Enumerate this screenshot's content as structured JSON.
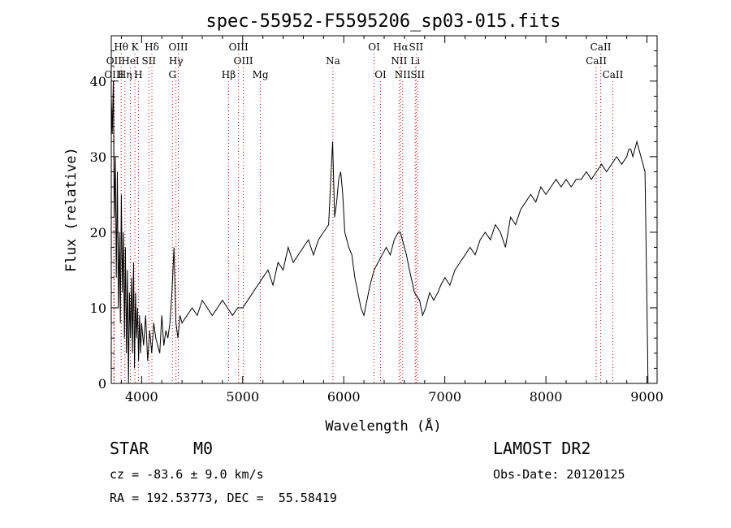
{
  "chart_data": {
    "type": "line",
    "title": "spec-55952-F5595206_sp03-015.fits",
    "xlabel": "Wavelength (Å)",
    "ylabel": "Flux (relative)",
    "xlim": [
      3700,
      9100
    ],
    "ylim": [
      0,
      46
    ],
    "xticks": [
      4000,
      5000,
      6000,
      7000,
      8000,
      9000
    ],
    "yticks": [
      0,
      10,
      20,
      30,
      40
    ],
    "grid": false,
    "line_color": "#000000",
    "marker_color": "#cc0000",
    "series": [
      {
        "x": [
          3700,
          3710,
          3720,
          3730,
          3740,
          3750,
          3760,
          3770,
          3780,
          3790,
          3800,
          3810,
          3820,
          3830,
          3840,
          3850,
          3860,
          3870,
          3880,
          3890,
          3900,
          3910,
          3920,
          3930,
          3940,
          3950,
          3960,
          3970,
          3980,
          3990,
          4000,
          4020,
          4040,
          4060,
          4080,
          4100,
          4120,
          4140,
          4160,
          4180,
          4200,
          4220,
          4240,
          4260,
          4280,
          4300,
          4320,
          4340,
          4360,
          4380,
          4400,
          4450,
          4500,
          4550,
          4600,
          4650,
          4700,
          4750,
          4800,
          4850,
          4900,
          4950,
          5000,
          5050,
          5100,
          5150,
          5200,
          5250,
          5300,
          5350,
          5400,
          5450,
          5500,
          5550,
          5600,
          5650,
          5700,
          5750,
          5800,
          5850,
          5890,
          5910,
          5930,
          5950,
          5970,
          5990,
          6010,
          6030,
          6050,
          6080,
          6110,
          6140,
          6170,
          6200,
          6230,
          6260,
          6300,
          6340,
          6380,
          6420,
          6460,
          6500,
          6540,
          6560,
          6580,
          6600,
          6620,
          6650,
          6700,
          6750,
          6780,
          6810,
          6850,
          6890,
          6930,
          6960,
          7000,
          7050,
          7100,
          7150,
          7200,
          7250,
          7300,
          7350,
          7400,
          7450,
          7500,
          7550,
          7600,
          7650,
          7700,
          7750,
          7800,
          7850,
          7900,
          7950,
          8000,
          8050,
          8100,
          8150,
          8200,
          8250,
          8300,
          8350,
          8400,
          8450,
          8500,
          8550,
          8600,
          8650,
          8700,
          8750,
          8800,
          8820,
          8840,
          8860,
          8880,
          8900,
          8920,
          8940,
          8960,
          8980,
          9000,
          9010
        ],
        "y": [
          38,
          33,
          40,
          22,
          30,
          14,
          28,
          10,
          20,
          8,
          25,
          12,
          20,
          6,
          18,
          4,
          15,
          0,
          12,
          6,
          14,
          4,
          16,
          2,
          12,
          6,
          10,
          3,
          9,
          4,
          8,
          5,
          9,
          3,
          7,
          4,
          8,
          6,
          5,
          4,
          9,
          5,
          7,
          6,
          8,
          12,
          18,
          8,
          6,
          9,
          8,
          9,
          10,
          9,
          11,
          10,
          9,
          10,
          11,
          10,
          9,
          10,
          10,
          11,
          12,
          13,
          14,
          15,
          13,
          16,
          15,
          18,
          16,
          17,
          18,
          19,
          17,
          19,
          20,
          21,
          32,
          22,
          24,
          27,
          28,
          25,
          20,
          19,
          18,
          17,
          14,
          12,
          10,
          9,
          11,
          13,
          15,
          16,
          17,
          18,
          17,
          19,
          20,
          20,
          19,
          18,
          17,
          15,
          12,
          11,
          9,
          10,
          12,
          11,
          12,
          13,
          14,
          13,
          15,
          16,
          17,
          18,
          17,
          19,
          20,
          19,
          21,
          20,
          18,
          22,
          21,
          23,
          24,
          25,
          24,
          26,
          25,
          26,
          27,
          26,
          27,
          26,
          27,
          27,
          28,
          27,
          28,
          29,
          28,
          29,
          30,
          29,
          30,
          31,
          31,
          30,
          31,
          32,
          31,
          30,
          29,
          28,
          10,
          0
        ]
      }
    ],
    "line_markers": [
      {
        "name": "Hθ",
        "wl": 3798,
        "row": 0
      },
      {
        "name": "K",
        "wl": 3934,
        "row": 0
      },
      {
        "name": "Hδ",
        "wl": 4102,
        "row": 0
      },
      {
        "name": "OIII",
        "wl": 4363,
        "row": 0
      },
      {
        "name": "OIII",
        "wl": 4959,
        "row": 0
      },
      {
        "name": "OI",
        "wl": 6300,
        "row": 0
      },
      {
        "name": "Hα",
        "wl": 6563,
        "row": 0
      },
      {
        "name": "SII",
        "wl": 6716,
        "row": 0
      },
      {
        "name": "CaII",
        "wl": 8542,
        "row": 0
      },
      {
        "name": "OII",
        "wl": 3727,
        "row": 1
      },
      {
        "name": "HeI",
        "wl": 3889,
        "row": 1
      },
      {
        "name": "SII",
        "wl": 4072,
        "row": 1
      },
      {
        "name": "Hγ",
        "wl": 4340,
        "row": 1
      },
      {
        "name": "OIII",
        "wl": 5007,
        "row": 1
      },
      {
        "name": "Na",
        "wl": 5893,
        "row": 1
      },
      {
        "name": "NII",
        "wl": 6548,
        "row": 1
      },
      {
        "name": "Li",
        "wl": 6707,
        "row": 1
      },
      {
        "name": "CaII",
        "wl": 8498,
        "row": 1
      },
      {
        "name": "OIII",
        "wl": 3727,
        "row": 2
      },
      {
        "name": "Hη",
        "wl": 3835,
        "row": 2
      },
      {
        "name": "H",
        "wl": 3968,
        "row": 2
      },
      {
        "name": "G",
        "wl": 4305,
        "row": 2
      },
      {
        "name": "Hβ",
        "wl": 4861,
        "row": 2
      },
      {
        "name": "Mg",
        "wl": 5175,
        "row": 2
      },
      {
        "name": "OI",
        "wl": 6364,
        "row": 2
      },
      {
        "name": "NII",
        "wl": 6583,
        "row": 2
      },
      {
        "name": "SII",
        "wl": 6731,
        "row": 2
      },
      {
        "name": "CaII",
        "wl": 8662,
        "row": 2
      }
    ]
  },
  "footer": {
    "class_label": "STAR",
    "subclass": "M0",
    "survey": "LAMOST DR2",
    "cz": "cz = -83.6 ± 9.0 km/s",
    "obs_date": "Obs-Date: 20120125",
    "coords": "RA = 192.53773, DEC =  55.58419"
  }
}
